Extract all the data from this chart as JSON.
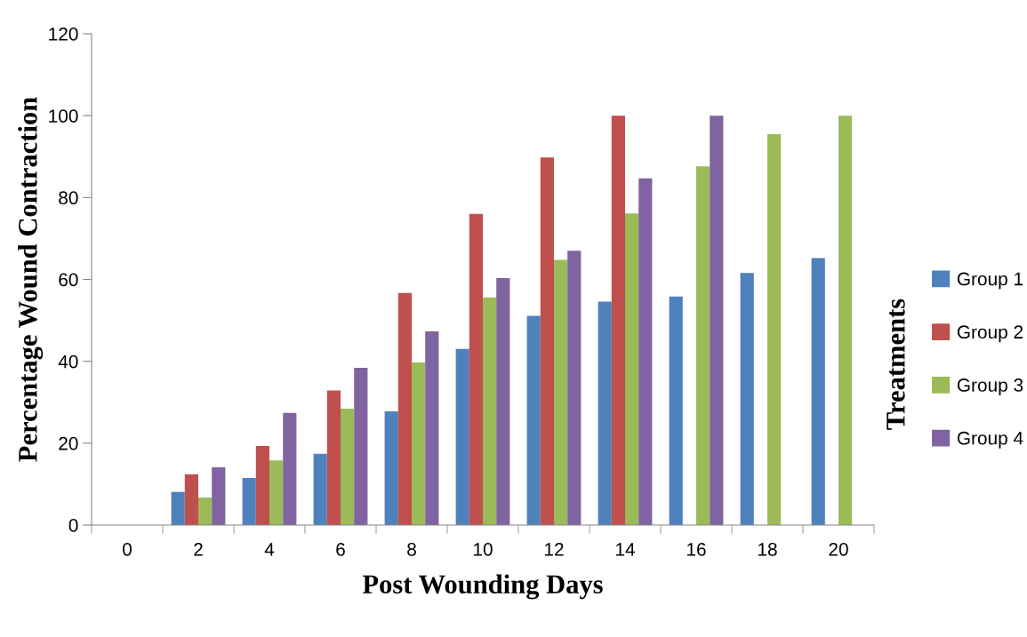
{
  "chart_data": {
    "type": "bar",
    "xlabel": "Post Wounding Days",
    "ylabel": "Percentage Wound Contraction",
    "legend_title": "Treatments",
    "categories": [
      "0",
      "2",
      "4",
      "6",
      "8",
      "10",
      "12",
      "14",
      "16",
      "18",
      "20"
    ],
    "series": [
      {
        "name": "Group 1",
        "color": "#4f81bd",
        "values": [
          0,
          8.1,
          11.5,
          17.4,
          27.8,
          43.0,
          51.1,
          54.6,
          55.8,
          61.6,
          65.2
        ]
      },
      {
        "name": "Group 2",
        "color": "#c0504d",
        "values": [
          0,
          12.4,
          19.3,
          32.9,
          56.7,
          76.0,
          89.8,
          100,
          null,
          null,
          null
        ]
      },
      {
        "name": "Group 3",
        "color": "#9bbb59",
        "values": [
          0,
          6.7,
          15.8,
          28.4,
          39.7,
          55.6,
          64.8,
          76.1,
          87.6,
          95.5,
          100
        ]
      },
      {
        "name": "Group 4",
        "color": "#8064a2",
        "values": [
          0,
          14.1,
          27.4,
          38.4,
          47.3,
          60.3,
          67.0,
          84.7,
          100,
          null,
          null
        ]
      }
    ],
    "ylim": [
      0,
      120
    ],
    "yticks": [
      0,
      20,
      40,
      60,
      80,
      100,
      120
    ],
    "grid": false,
    "legend": "right"
  }
}
